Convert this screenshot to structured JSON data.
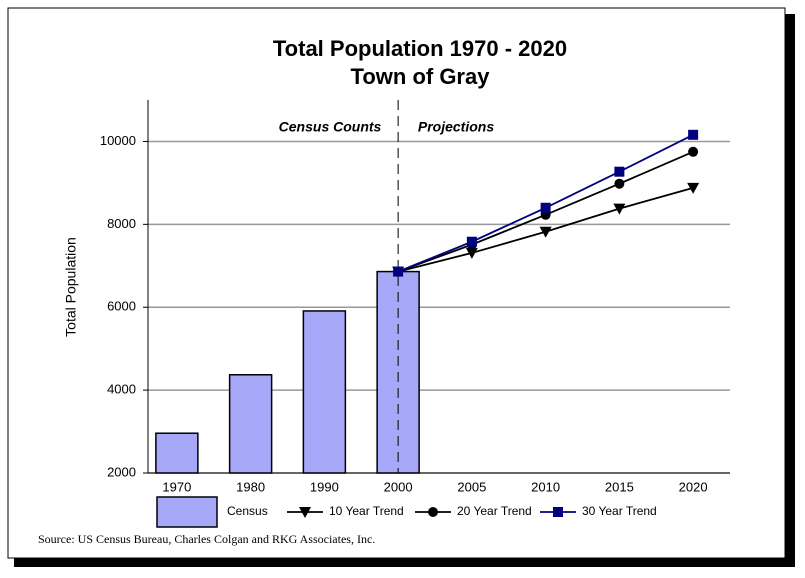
{
  "chart_data": {
    "type": "bar",
    "title": [
      "Total Population 1970 - 2020",
      "Town of Gray"
    ],
    "ylabel": "Total Population",
    "annotations": [
      "Census Counts",
      "Projections"
    ],
    "source": "Source: US Census Bureau, Charles Colgan and RKG Associates, Inc.",
    "categories": [
      "1970",
      "1980",
      "1990",
      "2000",
      "2005",
      "2010",
      "2015",
      "2020"
    ],
    "ylim": [
      2000,
      11000
    ],
    "yticks": [
      2000,
      4000,
      6000,
      8000,
      10000
    ],
    "grid": true,
    "legend": "bottom",
    "series": [
      {
        "name": "Census",
        "type": "bar",
        "color": "#a8a8f8",
        "values": [
          2960,
          4370,
          5910,
          6860,
          null,
          null,
          null,
          null
        ]
      },
      {
        "name": "10 Year Trend",
        "type": "line",
        "marker": "triangle-down",
        "color": "#000000",
        "values": [
          null,
          null,
          null,
          6860,
          7310,
          7820,
          8380,
          8880
        ]
      },
      {
        "name": "20 Year Trend",
        "type": "line",
        "marker": "circle",
        "color": "#000000",
        "values": [
          null,
          null,
          null,
          6860,
          7510,
          8230,
          8980,
          9750
        ]
      },
      {
        "name": "30 Year Trend",
        "type": "line",
        "marker": "square",
        "color": "#000080",
        "values": [
          null,
          null,
          null,
          6860,
          7580,
          8400,
          9270,
          10160
        ]
      }
    ]
  }
}
